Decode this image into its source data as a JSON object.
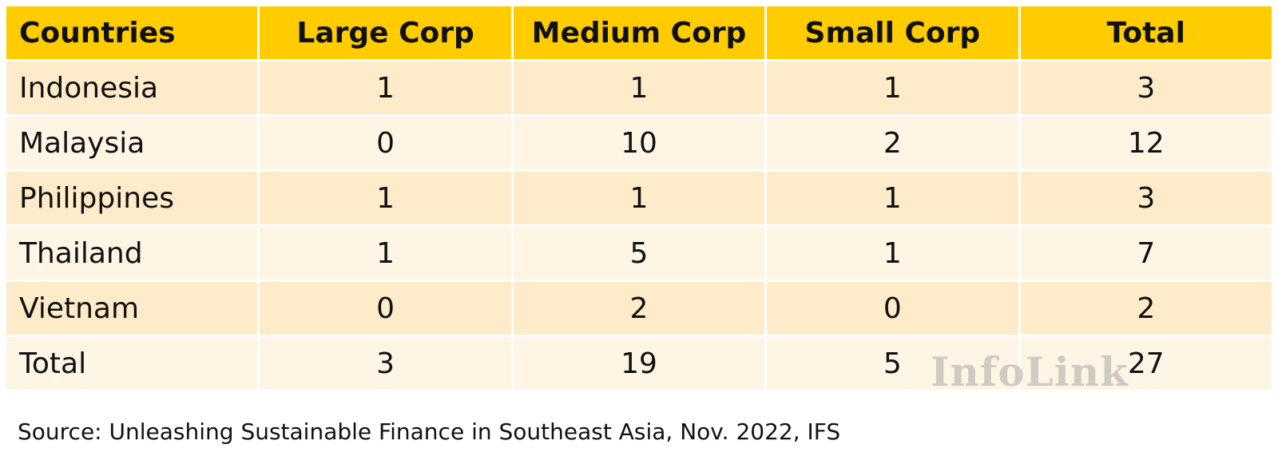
{
  "table": {
    "headers": [
      "Countries",
      "Large Corp",
      "Medium Corp",
      "Small Corp",
      "Total"
    ],
    "rows": [
      [
        "Indonesia",
        "1",
        "1",
        "1",
        "3"
      ],
      [
        "Malaysia",
        "0",
        "10",
        "2",
        "12"
      ],
      [
        "Philippines",
        "1",
        "1",
        "1",
        "3"
      ],
      [
        "Thailand",
        "1",
        "5",
        "1",
        "7"
      ],
      [
        "Vietnam",
        "0",
        "2",
        "0",
        "2"
      ],
      [
        "Total",
        "3",
        "19",
        "5",
        "27"
      ]
    ]
  },
  "watermark": "InfoLink",
  "source": "Source: Unleashing Sustainable Finance in Southeast Asia, Nov. 2022, IFS",
  "colors": {
    "header_bg": "#ffcc00",
    "row_odd_bg": "#fdebc9",
    "row_even_bg": "#fef5e5"
  },
  "chart_data": {
    "type": "table",
    "columns": [
      "Countries",
      "Large Corp",
      "Medium Corp",
      "Small Corp",
      "Total"
    ],
    "rows": [
      {
        "Countries": "Indonesia",
        "Large Corp": 1,
        "Medium Corp": 1,
        "Small Corp": 1,
        "Total": 3
      },
      {
        "Countries": "Malaysia",
        "Large Corp": 0,
        "Medium Corp": 10,
        "Small Corp": 2,
        "Total": 12
      },
      {
        "Countries": "Philippines",
        "Large Corp": 1,
        "Medium Corp": 1,
        "Small Corp": 1,
        "Total": 3
      },
      {
        "Countries": "Thailand",
        "Large Corp": 1,
        "Medium Corp": 5,
        "Small Corp": 1,
        "Total": 7
      },
      {
        "Countries": "Vietnam",
        "Large Corp": 0,
        "Medium Corp": 2,
        "Small Corp": 0,
        "Total": 2
      },
      {
        "Countries": "Total",
        "Large Corp": 3,
        "Medium Corp": 19,
        "Small Corp": 5,
        "Total": 27
      }
    ]
  }
}
